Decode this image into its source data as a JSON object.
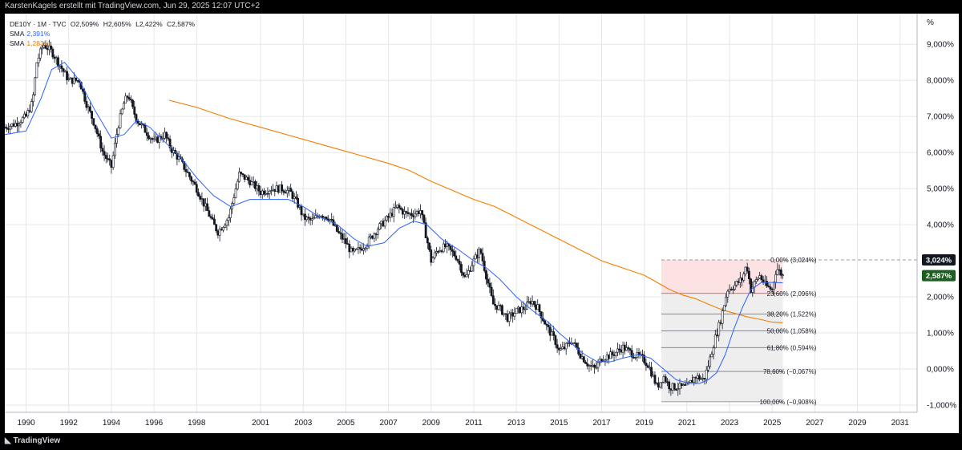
{
  "header": {
    "caption": "KarstenKagels erstellt mit TradingView.com, Jun 29, 2025 12:07 UTC+2"
  },
  "legend": {
    "symbol": "DE10Y · 1M · TVC",
    "open": "O2,509%",
    "high": "H2,605%",
    "low": "L2,422%",
    "close": "C2,587%",
    "sma1_label": "SMA",
    "sma1_value": "2,391%",
    "sma2_label": "SMA",
    "sma2_value": "1,283%"
  },
  "footer": {
    "brand": "TradingView"
  },
  "colors": {
    "up": "#131722",
    "down": "#131722",
    "sma_fast": "#2962ff",
    "sma_slow": "#f57c00",
    "fib_zone_top": "#fde2e4",
    "fib_zone_rest": "#eeeeee",
    "last_price_badge": "#1b5e20",
    "high_badge": "#131722",
    "fib_red": "#e53935"
  },
  "chart_data": {
    "type": "line",
    "title": "",
    "xlabel": "",
    "ylabel": "%",
    "xlim": [
      1989.0,
      2031.8
    ],
    "ylim": [
      -1.2,
      9.85
    ],
    "y_ticks": [
      {
        "value": 9,
        "label": "9,000%"
      },
      {
        "value": 8,
        "label": "8,000%"
      },
      {
        "value": 7,
        "label": "7,000%"
      },
      {
        "value": 6,
        "label": "6,000%"
      },
      {
        "value": 5,
        "label": "5,000%"
      },
      {
        "value": 4,
        "label": "4,000%"
      },
      {
        "value": 2,
        "label": "2,000%"
      },
      {
        "value": 1,
        "label": "1,000%"
      },
      {
        "value": 0,
        "label": "0,000%"
      },
      {
        "value": -1,
        "label": "-1,000%"
      }
    ],
    "x_ticks": [
      {
        "value": 1990,
        "label": "1990"
      },
      {
        "value": 1992,
        "label": "1992"
      },
      {
        "value": 1994,
        "label": "1994"
      },
      {
        "value": 1996,
        "label": "1996"
      },
      {
        "value": 1998,
        "label": "1998"
      },
      {
        "value": 2001,
        "label": "2001"
      },
      {
        "value": 2003,
        "label": "2003"
      },
      {
        "value": 2005,
        "label": "2005"
      },
      {
        "value": 2007,
        "label": "2007"
      },
      {
        "value": 2009,
        "label": "2009"
      },
      {
        "value": 2011,
        "label": "2011"
      },
      {
        "value": 2013,
        "label": "2013"
      },
      {
        "value": 2015,
        "label": "2015"
      },
      {
        "value": 2017,
        "label": "2017"
      },
      {
        "value": 2019,
        "label": "2019"
      },
      {
        "value": 2021,
        "label": "2021"
      },
      {
        "value": 2023,
        "label": "2023"
      },
      {
        "value": 2025,
        "label": "2025"
      },
      {
        "value": 2027,
        "label": "2027"
      },
      {
        "value": 2029,
        "label": "2029"
      },
      {
        "value": 2031,
        "label": "2031"
      }
    ],
    "series": [
      {
        "name": "DE10Y",
        "kind": "price",
        "x": [
          1989.0,
          1989.5,
          1990.0,
          1990.3,
          1990.5,
          1990.8,
          1991.2,
          1991.6,
          1992.0,
          1992.5,
          1992.8,
          1993.2,
          1993.6,
          1994.0,
          1994.3,
          1994.6,
          1994.8,
          1995.0,
          1995.2,
          1995.6,
          1996.0,
          1996.5,
          1996.8,
          1997.2,
          1997.6,
          1998.0,
          1998.4,
          1998.8,
          1999.0,
          1999.5,
          2000.0,
          2000.5,
          2001.0,
          2001.5,
          2002.0,
          2002.4,
          2002.8,
          2003.0,
          2003.4,
          2003.8,
          2004.2,
          2004.6,
          2005.0,
          2005.3,
          2005.6,
          2006.0,
          2006.5,
          2007.0,
          2007.4,
          2007.8,
          2008.2,
          2008.5,
          2008.8,
          2009.0,
          2009.3,
          2009.7,
          2010.2,
          2010.6,
          2010.9,
          2011.3,
          2011.7,
          2011.9,
          2012.2,
          2012.6,
          2013.0,
          2013.4,
          2013.7,
          2014.0,
          2014.4,
          2014.8,
          2015.0,
          2015.3,
          2015.6,
          2016.0,
          2016.4,
          2016.7,
          2017.0,
          2017.5,
          2018.0,
          2018.5,
          2018.9,
          2019.2,
          2019.6,
          2019.9,
          2020.2,
          2020.6,
          2021.0,
          2021.4,
          2021.8,
          2022.0,
          2022.3,
          2022.6,
          2022.9,
          2023.2,
          2023.6,
          2023.8,
          2024.0,
          2024.4,
          2024.7,
          2025.0,
          2025.2,
          2025.5
        ],
        "values": [
          6.7,
          6.8,
          7.0,
          7.4,
          8.5,
          9.0,
          8.8,
          8.4,
          8.0,
          8.0,
          7.4,
          6.8,
          6.0,
          5.6,
          6.7,
          7.4,
          7.6,
          7.2,
          6.9,
          6.6,
          6.3,
          6.5,
          6.1,
          5.8,
          5.4,
          5.0,
          4.5,
          4.0,
          3.8,
          4.2,
          5.4,
          5.2,
          4.9,
          5.0,
          5.0,
          4.9,
          4.5,
          4.2,
          4.1,
          4.3,
          4.2,
          3.8,
          3.5,
          3.2,
          3.3,
          3.5,
          3.9,
          4.2,
          4.5,
          4.3,
          4.3,
          4.4,
          3.6,
          3.0,
          3.3,
          3.4,
          3.1,
          2.5,
          2.9,
          3.3,
          2.3,
          1.8,
          1.7,
          1.4,
          1.6,
          1.7,
          1.9,
          1.7,
          1.2,
          0.8,
          0.5,
          0.6,
          0.8,
          0.4,
          0.1,
          0.0,
          0.3,
          0.4,
          0.6,
          0.4,
          0.3,
          0.1,
          -0.5,
          -0.2,
          -0.5,
          -0.5,
          -0.5,
          -0.2,
          -0.3,
          0.1,
          0.8,
          1.4,
          2.2,
          2.3,
          2.5,
          2.9,
          2.2,
          2.6,
          2.3,
          2.2,
          2.8,
          2.587
        ]
      },
      {
        "name": "SMA",
        "kind": "sma_fast",
        "x": [
          1989.0,
          1990.0,
          1990.7,
          1991.2,
          1991.8,
          1992.5,
          1993.2,
          1994.0,
          1994.6,
          1995.2,
          1995.8,
          1996.5,
          1997.2,
          1998.0,
          1998.8,
          1999.6,
          2000.5,
          2001.5,
          2002.3,
          2003.0,
          2003.8,
          2004.6,
          2005.4,
          2006.0,
          2006.8,
          2007.5,
          2008.2,
          2008.8,
          2009.5,
          2010.3,
          2011.0,
          2011.6,
          2012.2,
          2013.0,
          2013.8,
          2014.5,
          2015.0,
          2015.6,
          2016.2,
          2016.8,
          2017.4,
          2018.0,
          2018.7,
          2019.3,
          2019.9,
          2020.5,
          2021.1,
          2021.6,
          2022.0,
          2022.4,
          2022.8,
          2023.2,
          2023.6,
          2024.0,
          2024.5,
          2025.0,
          2025.5
        ],
        "values": [
          6.5,
          6.6,
          7.5,
          8.3,
          8.5,
          8.0,
          7.2,
          6.4,
          6.5,
          6.9,
          6.7,
          6.3,
          5.9,
          5.3,
          4.8,
          4.5,
          4.7,
          4.7,
          4.7,
          4.5,
          4.2,
          4.0,
          3.6,
          3.4,
          3.5,
          3.9,
          4.1,
          4.0,
          3.6,
          3.3,
          3.0,
          2.8,
          2.5,
          2.0,
          1.6,
          1.3,
          1.0,
          0.7,
          0.4,
          0.2,
          0.2,
          0.3,
          0.4,
          0.3,
          0.0,
          -0.3,
          -0.4,
          -0.4,
          -0.3,
          -0.1,
          0.4,
          1.1,
          1.7,
          2.2,
          2.4,
          2.4,
          2.39
        ]
      },
      {
        "name": "SMA",
        "kind": "sma_slow",
        "x": [
          1996.7,
          1998.0,
          1999.5,
          2001.0,
          2002.5,
          2004.0,
          2005.5,
          2007.0,
          2008.0,
          2009.0,
          2010.0,
          2011.0,
          2012.0,
          2013.0,
          2014.0,
          2015.0,
          2016.0,
          2017.0,
          2018.0,
          2019.0,
          2019.6,
          2020.2,
          2020.8,
          2021.4,
          2022.0,
          2022.6,
          2023.2,
          2023.8,
          2024.4,
          2025.0,
          2025.5
        ],
        "values": [
          7.45,
          7.25,
          6.95,
          6.7,
          6.45,
          6.2,
          5.95,
          5.7,
          5.5,
          5.2,
          4.95,
          4.7,
          4.5,
          4.2,
          3.9,
          3.6,
          3.3,
          3.0,
          2.8,
          2.6,
          2.4,
          2.2,
          2.05,
          1.95,
          1.8,
          1.65,
          1.55,
          1.45,
          1.38,
          1.3,
          1.283
        ]
      }
    ],
    "fib": {
      "x_start": 2019.8,
      "x_end": 2025.5,
      "levels": [
        {
          "ratio": "0,00%",
          "value": 3.024,
          "label": "0,00% (3,024%)"
        },
        {
          "ratio": "23,60%",
          "value": 2.096,
          "label": "23,60% (2,096%)"
        },
        {
          "ratio": "38,20%",
          "value": 1.522,
          "label": "38,20% (1,522%)"
        },
        {
          "ratio": "50,00%",
          "value": 1.058,
          "label": "50,00% (1,058%)"
        },
        {
          "ratio": "61,80%",
          "value": 0.594,
          "label": "61,80% (0,594%)"
        },
        {
          "ratio": "78,60%",
          "value": -0.067,
          "label": "78,60% (−0,067%)"
        },
        {
          "ratio": "100,00%",
          "value": -0.908,
          "label": "100,00% (−0,908%)"
        }
      ]
    },
    "price_badges": [
      {
        "value": 3.024,
        "label": "3,024%",
        "kind": "high"
      },
      {
        "value": 2.587,
        "label": "2,587%",
        "kind": "last"
      }
    ],
    "unit_label": "%",
    "grid": true,
    "legend_position": "top-left"
  }
}
